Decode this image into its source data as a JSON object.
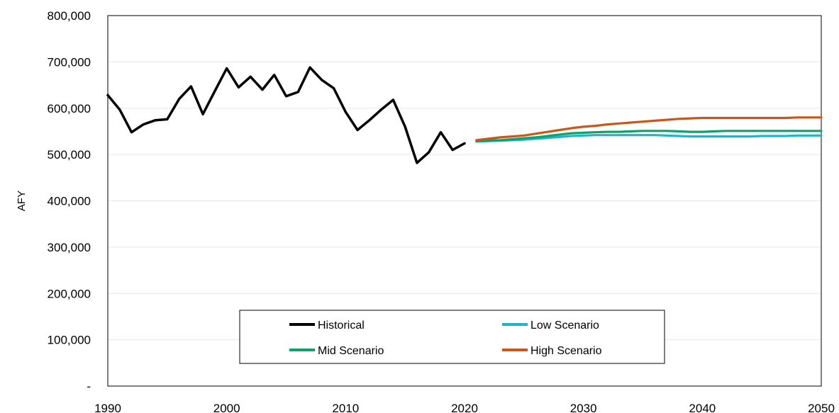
{
  "chart_data": {
    "type": "line",
    "title": "",
    "xlabel": "",
    "ylabel": "AFY",
    "xlim": [
      1990,
      2050
    ],
    "ylim": [
      0,
      800000
    ],
    "x_ticks": [
      "1990",
      "2000",
      "2010",
      "2020",
      "2030",
      "2040",
      "2050"
    ],
    "y_ticks": [
      "-",
      "100,000",
      "200,000",
      "300,000",
      "400,000",
      "500,000",
      "600,000",
      "700,000",
      "800,000"
    ],
    "grid": true,
    "legend_position": "bottom-center",
    "series": [
      {
        "name": "Historical",
        "color": "#000000",
        "x": [
          1990,
          1991,
          1992,
          1993,
          1994,
          1995,
          1996,
          1997,
          1998,
          1999,
          2000,
          2001,
          2002,
          2003,
          2004,
          2005,
          2006,
          2007,
          2008,
          2009,
          2010,
          2011,
          2012,
          2013,
          2014,
          2015,
          2016,
          2017,
          2018,
          2019,
          2020
        ],
        "y": [
          628000,
          597000,
          548000,
          565000,
          574000,
          576000,
          620000,
          647000,
          587000,
          637000,
          686000,
          645000,
          668000,
          640000,
          672000,
          626000,
          635000,
          688000,
          661000,
          643000,
          592000,
          553000,
          574000,
          597000,
          618000,
          560000,
          482000,
          505000,
          548000,
          510000,
          524000
        ]
      },
      {
        "name": "Low Scenario",
        "color": "#1fb5c9",
        "x": [
          2021,
          2022,
          2023,
          2024,
          2025,
          2026,
          2027,
          2028,
          2029,
          2030,
          2031,
          2032,
          2033,
          2034,
          2035,
          2036,
          2037,
          2038,
          2039,
          2040,
          2041,
          2042,
          2043,
          2044,
          2045,
          2046,
          2047,
          2048,
          2049,
          2050
        ],
        "y": [
          528000,
          529000,
          530000,
          531000,
          532000,
          534000,
          536000,
          538000,
          540000,
          541000,
          542000,
          542000,
          542000,
          542000,
          542000,
          542000,
          541000,
          540000,
          539000,
          539000,
          539000,
          539000,
          539000,
          539000,
          540000,
          540000,
          540000,
          541000,
          541000,
          541000
        ]
      },
      {
        "name": "Mid Scenario",
        "color": "#10a06c",
        "x": [
          2021,
          2022,
          2023,
          2024,
          2025,
          2026,
          2027,
          2028,
          2029,
          2030,
          2031,
          2032,
          2033,
          2034,
          2035,
          2036,
          2037,
          2038,
          2039,
          2040,
          2041,
          2042,
          2043,
          2044,
          2045,
          2046,
          2047,
          2048,
          2049,
          2050
        ],
        "y": [
          529000,
          530000,
          531000,
          533000,
          535000,
          537000,
          540000,
          543000,
          546000,
          547000,
          548000,
          549000,
          549000,
          550000,
          551000,
          551000,
          551000,
          550000,
          549000,
          549000,
          550000,
          551000,
          551000,
          551000,
          551000,
          551000,
          551000,
          551000,
          551000,
          551000
        ]
      },
      {
        "name": "High Scenario",
        "color": "#c8581a",
        "x": [
          2021,
          2022,
          2023,
          2024,
          2025,
          2026,
          2027,
          2028,
          2029,
          2030,
          2031,
          2032,
          2033,
          2034,
          2035,
          2036,
          2037,
          2038,
          2039,
          2040,
          2041,
          2042,
          2043,
          2044,
          2045,
          2046,
          2047,
          2048,
          2049,
          2050
        ],
        "y": [
          531000,
          534000,
          537000,
          539000,
          541000,
          545000,
          549000,
          553000,
          557000,
          560000,
          562000,
          565000,
          567000,
          569000,
          571000,
          573000,
          575000,
          577000,
          578000,
          579000,
          579000,
          579000,
          579000,
          579000,
          579000,
          579000,
          579000,
          580000,
          580000,
          580000
        ]
      }
    ],
    "legend": [
      "Historical",
      "Low Scenario",
      "Mid Scenario",
      "High Scenario"
    ]
  }
}
